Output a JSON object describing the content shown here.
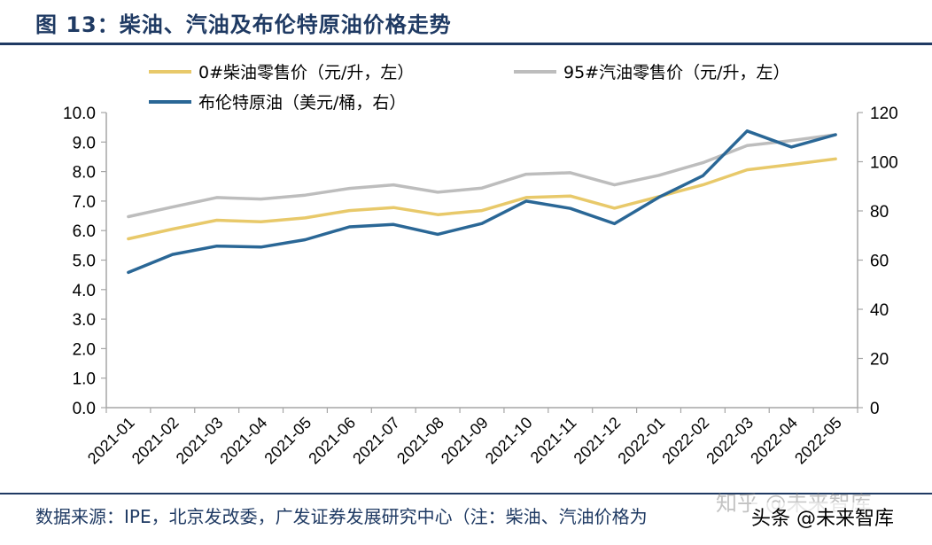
{
  "figure": {
    "title": "图 13：柴油、汽油及布伦特原油价格走势",
    "source": "数据来源：IPE，北京发改委，广发证券发展研究中心（注：柴油、汽油价格为",
    "watermark": "知乎 @未来智库",
    "watermark_author": "头条 @未来智库"
  },
  "chart_data": {
    "type": "line",
    "categories": [
      "2021-01",
      "2021-02",
      "2021-03",
      "2021-04",
      "2021-05",
      "2021-06",
      "2021-07",
      "2021-08",
      "2021-09",
      "2021-10",
      "2021-11",
      "2021-12",
      "2022-01",
      "2022-02",
      "2022-03",
      "2022-04",
      "2022-05"
    ],
    "left_axis": {
      "ylim": [
        0,
        10
      ],
      "ticks": [
        "0.0",
        "1.0",
        "2.0",
        "3.0",
        "4.0",
        "5.0",
        "6.0",
        "7.0",
        "8.0",
        "9.0",
        "10.0"
      ]
    },
    "right_axis": {
      "ylim": [
        0,
        120
      ],
      "ticks": [
        "0",
        "20",
        "40",
        "60",
        "80",
        "100",
        "120"
      ]
    },
    "legend_placement": "top",
    "grid": false,
    "series": [
      {
        "name": "0#柴油零售价（元/升，左）",
        "axis": "left",
        "color": "#e8c96a",
        "values": [
          5.72,
          6.05,
          6.35,
          6.3,
          6.43,
          6.68,
          6.78,
          6.54,
          6.68,
          7.12,
          7.17,
          6.76,
          7.15,
          7.55,
          8.06,
          8.24,
          8.43
        ]
      },
      {
        "name": "95#汽油零售价（元/升，左）",
        "axis": "left",
        "color": "#bdbdbd",
        "values": [
          6.47,
          6.8,
          7.12,
          7.07,
          7.2,
          7.43,
          7.55,
          7.3,
          7.44,
          7.91,
          7.96,
          7.55,
          7.87,
          8.3,
          8.88,
          9.05,
          9.25
        ]
      },
      {
        "name": "布伦特原油（美元/桶，右）",
        "axis": "right",
        "color": "#2a6796",
        "values": [
          55.0,
          62.3,
          65.7,
          65.3,
          68.3,
          73.5,
          74.5,
          70.5,
          74.9,
          84.0,
          81.0,
          74.8,
          85.5,
          94.3,
          112.5,
          106.0,
          111.0
        ]
      }
    ]
  }
}
